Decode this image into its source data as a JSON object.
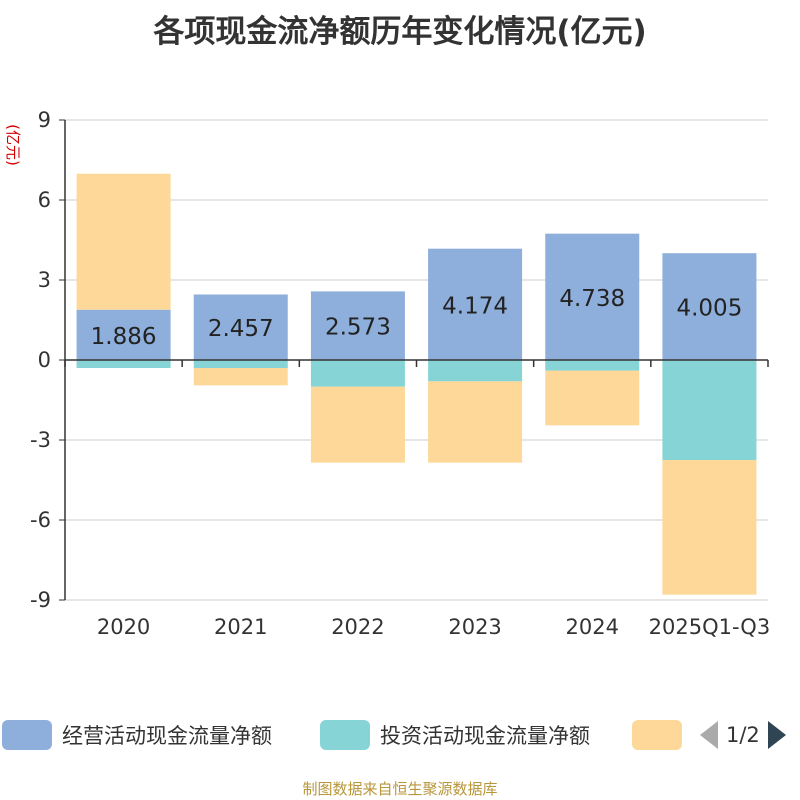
{
  "chart_data": {
    "type": "bar",
    "stacked": true,
    "title": "各项现金流净额历年变化情况(亿元)",
    "ylabel": "(亿元)",
    "xlabel": "",
    "categories": [
      "2020",
      "2021",
      "2022",
      "2023",
      "2024",
      "2025Q1-Q3"
    ],
    "ylim": [
      -9,
      9
    ],
    "yticks": [
      9,
      6,
      3,
      0,
      -3,
      -6,
      -9
    ],
    "series": [
      {
        "name": "经营活动现金流量净额",
        "color": "#8eaedb",
        "values": [
          1.886,
          2.457,
          2.573,
          4.174,
          4.738,
          4.005
        ],
        "labels": [
          "1.886",
          "2.457",
          "2.573",
          "4.174",
          "4.738",
          "4.005"
        ]
      },
      {
        "name": "投资活动现金流量净额",
        "color": "#86d4d6",
        "values": [
          -0.3,
          -0.3,
          -1.0,
          -0.8,
          -0.4,
          -3.75
        ]
      },
      {
        "name": "",
        "color": "#fdd898",
        "values": [
          5.1,
          -0.65,
          -2.85,
          -3.05,
          -2.05,
          -5.05
        ]
      }
    ],
    "legend": {
      "position": "bottom",
      "page": "1/2"
    }
  },
  "source": "制图数据来自恒生聚源数据库"
}
